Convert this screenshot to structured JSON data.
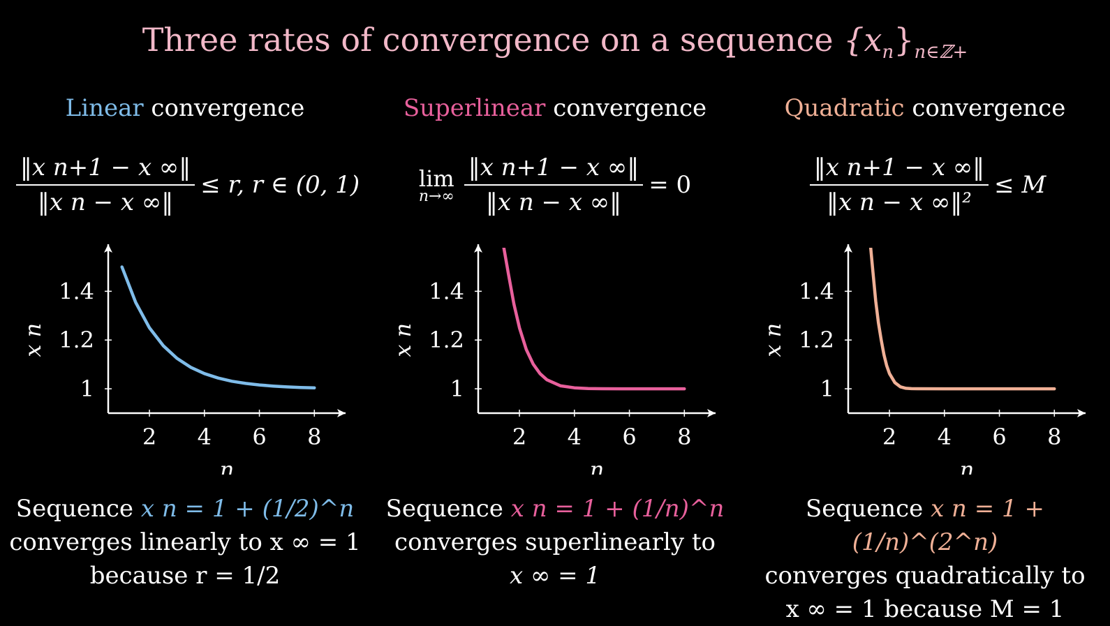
{
  "title": {
    "text": "Three rates of convergence on a sequence ",
    "math": "{x",
    "math_sub_n": "n",
    "math_close": "}",
    "subscript": "n∈ℤ+"
  },
  "colors": {
    "title": "#f2b8c8",
    "linear": "#7fbce9",
    "superlinear": "#e8609c",
    "quadratic": "#f0b096",
    "text": "#ffffff",
    "background": "#000000"
  },
  "panels": [
    {
      "heading_keyword": "Linear",
      "heading_rest": " convergence",
      "formula": {
        "numerator": "‖x n+1 − x ∞‖",
        "denominator": "‖x n − x ∞‖",
        "relation": "≤ r, r ∈ (0, 1)"
      },
      "caption": {
        "line1_prefix": "Sequence ",
        "line1_math": "x n = 1 + (1/2)^n",
        "line2": "converges linearly to x ∞ = 1",
        "line3": "because r = 1/2"
      }
    },
    {
      "heading_keyword": "Superlinear",
      "heading_rest": " convergence",
      "formula": {
        "lim": "lim",
        "lim_sub": "n→∞",
        "numerator": "‖x n+1 − x ∞‖",
        "denominator": "‖x n − x ∞‖",
        "relation": "= 0"
      },
      "caption": {
        "line1_prefix": "Sequence ",
        "line1_math": "x n = 1 + (1/n)^n",
        "line2": "converges superlinearly to",
        "line3": "x ∞ = 1"
      }
    },
    {
      "heading_keyword": "Quadratic",
      "heading_rest": " convergence",
      "formula": {
        "numerator": "‖x n+1 − x ∞‖",
        "denominator": "‖x n − x ∞‖²",
        "relation": "≤ M"
      },
      "caption": {
        "line1_prefix": "Sequence ",
        "line1_math": "x n = 1 + (1/n)^(2^n)",
        "line2": "converges quadratically to",
        "line3": "x ∞ = 1 because M = 1"
      }
    }
  ],
  "chart_data": [
    {
      "type": "line",
      "title": "Linear convergence",
      "xlabel": "n",
      "ylabel": "x n",
      "xlim": [
        0.5,
        8.5
      ],
      "ylim": [
        0.9,
        1.55
      ],
      "xticks": [
        2,
        4,
        6,
        8
      ],
      "yticks": [
        1,
        1.2,
        1.4
      ],
      "ytick_labels": [
        "1",
        "1.2",
        "1.4"
      ],
      "series": [
        {
          "formula": "1 + (1/2)^n",
          "x": [
            1,
            1.5,
            2,
            2.5,
            3,
            3.5,
            4,
            4.5,
            5,
            5.5,
            6,
            6.5,
            7,
            7.5,
            8
          ],
          "y": [
            1.5,
            1.354,
            1.25,
            1.177,
            1.125,
            1.088,
            1.0625,
            1.044,
            1.031,
            1.022,
            1.0156,
            1.011,
            1.0078,
            1.0055,
            1.0039
          ]
        }
      ]
    },
    {
      "type": "line",
      "title": "Superlinear convergence",
      "xlabel": "n",
      "ylabel": "x n",
      "xlim": [
        0.5,
        8.5
      ],
      "ylim": [
        0.9,
        1.55
      ],
      "xticks": [
        2,
        4,
        6,
        8
      ],
      "yticks": [
        1,
        1.2,
        1.4
      ],
      "ytick_labels": [
        "1",
        "1.2",
        "1.4"
      ],
      "series": [
        {
          "formula": "1 + (1/n)^n",
          "x": [
            1.4,
            1.6,
            1.8,
            2,
            2.25,
            2.5,
            2.75,
            3,
            3.5,
            4,
            4.5,
            5,
            6,
            7,
            8
          ],
          "y": [
            1.6,
            1.471,
            1.347,
            1.25,
            1.161,
            1.101,
            1.062,
            1.037,
            1.012,
            1.0039,
            1.0012,
            1.0003,
            1.0,
            1.0,
            1.0
          ]
        }
      ]
    },
    {
      "type": "line",
      "title": "Quadratic convergence",
      "xlabel": "n",
      "ylabel": "x n",
      "xlim": [
        0.5,
        8.5
      ],
      "ylim": [
        0.9,
        1.55
      ],
      "xticks": [
        2,
        4,
        6,
        8
      ],
      "yticks": [
        1,
        1.2,
        1.4
      ],
      "ytick_labels": [
        "1",
        "1.2",
        "1.4"
      ],
      "series": [
        {
          "formula": "1 + (1/n)^(2^n)",
          "x": [
            1.3,
            1.4,
            1.5,
            1.6,
            1.7,
            1.8,
            1.9,
            2,
            2.2,
            2.4,
            2.6,
            2.8,
            3,
            4,
            5,
            6,
            7,
            8
          ],
          "y": [
            1.6,
            1.48,
            1.36,
            1.27,
            1.2,
            1.14,
            1.095,
            1.0625,
            1.025,
            1.008,
            1.002,
            1.0005,
            1.0001,
            1.0,
            1.0,
            1.0,
            1.0,
            1.0
          ]
        }
      ]
    }
  ]
}
